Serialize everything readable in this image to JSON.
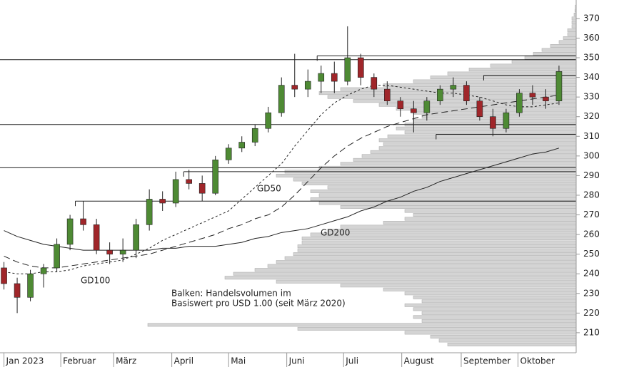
{
  "chart_data": {
    "type": "candlestick",
    "annotations": [
      "GD50",
      "GD100",
      "GD200",
      "Balken: Handelsvolumen im",
      "Basiswert pro USD 1.00 (seit März 2020)"
    ],
    "xlim": [
      -0.3,
      43.3
    ],
    "xticks": [
      {
        "value": 0,
        "label": "Jan 2023"
      },
      {
        "value": 4.3,
        "label": "Februar"
      },
      {
        "value": 8.3,
        "label": "März"
      },
      {
        "value": 12.7,
        "label": "April"
      },
      {
        "value": 17,
        "label": "Mai"
      },
      {
        "value": 21.4,
        "label": "Juni"
      },
      {
        "value": 25.7,
        "label": "Juli"
      },
      {
        "value": 30.1,
        "label": "August"
      },
      {
        "value": 34.6,
        "label": "September"
      },
      {
        "value": 38.9,
        "label": "Oktober"
      }
    ],
    "ylim": [
      199.8,
      379.4
    ],
    "yticks": [
      210,
      220,
      230,
      240,
      250,
      260,
      270,
      280,
      290,
      300,
      310,
      320,
      330,
      340,
      350,
      360,
      370
    ],
    "up_color": "#4e8a34",
    "down_color": "#a0262a",
    "open": [
      243,
      235,
      228,
      240,
      243,
      255,
      268,
      265,
      252,
      250,
      252,
      265,
      278,
      276,
      288,
      286,
      281,
      298,
      304,
      307,
      314,
      322,
      336,
      334,
      338,
      342,
      338,
      350,
      340,
      334,
      328,
      324,
      322,
      328,
      334,
      336,
      328,
      320,
      314,
      322,
      332,
      330,
      328
    ],
    "high": [
      246,
      238,
      242,
      245,
      258,
      270,
      277,
      268,
      256,
      258,
      268,
      283,
      282,
      292,
      293,
      290,
      300,
      306,
      310,
      316,
      325,
      340,
      352,
      344,
      346,
      348,
      366,
      352,
      342,
      338,
      330,
      328,
      330,
      336,
      340,
      338,
      330,
      324,
      324,
      334,
      336,
      334,
      346
    ],
    "low": [
      232,
      220,
      226,
      233,
      241,
      252,
      262,
      250,
      245,
      246,
      248,
      262,
      272,
      274,
      283,
      277,
      280,
      296,
      302,
      305,
      312,
      320,
      330,
      330,
      332,
      332,
      336,
      336,
      330,
      326,
      320,
      312,
      318,
      326,
      330,
      326,
      318,
      310,
      312,
      320,
      326,
      324,
      326
    ],
    "close": [
      235,
      228,
      240,
      243,
      255,
      268,
      265,
      252,
      250,
      252,
      265,
      278,
      276,
      288,
      286,
      281,
      298,
      304,
      307,
      314,
      322,
      336,
      334,
      338,
      342,
      338,
      350,
      340,
      334,
      328,
      324,
      322,
      328,
      334,
      336,
      328,
      320,
      314,
      322,
      332,
      330,
      328,
      343
    ],
    "moving_averages": [
      {
        "name": "GD50",
        "dash": "3,3",
        "values": [
          241,
          240,
          240,
          241,
          241,
          242,
          244,
          245,
          246,
          247,
          250,
          253,
          257,
          260,
          263,
          266,
          269,
          272,
          278,
          284,
          290,
          296,
          305,
          313,
          321,
          327,
          331,
          334,
          336,
          336,
          335,
          334,
          333,
          332,
          332,
          331,
          330,
          328,
          326,
          325,
          325,
          326,
          327
        ]
      },
      {
        "name": "GD100",
        "dash": "9,5",
        "values": [
          249,
          246,
          244,
          243,
          243,
          244,
          245,
          246,
          247,
          248,
          249,
          250,
          252,
          254,
          256,
          258,
          260,
          263,
          265,
          268,
          270,
          274,
          280,
          287,
          294,
          300,
          305,
          309,
          312,
          315,
          317,
          319,
          321,
          322,
          323,
          324,
          325,
          326,
          327,
          328,
          329,
          330,
          331
        ]
      },
      {
        "name": "GD200",
        "dash": "",
        "values": [
          262,
          259,
          257,
          255,
          254,
          253,
          252,
          252,
          252,
          252,
          252,
          252,
          253,
          253,
          254,
          254,
          254,
          255,
          256,
          258,
          259,
          261,
          262,
          263,
          265,
          267,
          269,
          272,
          274,
          277,
          279,
          282,
          284,
          287,
          289,
          291,
          293,
          295,
          297,
          299,
          301,
          302,
          304
        ]
      }
    ],
    "levels": [
      {
        "value": 349,
        "start": -0.3
      },
      {
        "value": 351,
        "start": 23.7
      },
      {
        "value": 341,
        "start": 36.3
      },
      {
        "value": 316,
        "start": -0.3
      },
      {
        "value": 311,
        "start": 32.7
      },
      {
        "value": 294,
        "start": -0.3
      },
      {
        "value": 292,
        "start": 13.6
      },
      {
        "value": 277,
        "start": 5.4
      }
    ],
    "volume_profile": {
      "color": "#d4d4d4",
      "xlim": [
        0,
        100
      ],
      "levels": [
        204,
        206,
        208,
        210,
        212,
        214,
        216,
        218,
        220,
        222,
        224,
        226,
        228,
        230,
        232,
        234,
        236,
        238,
        240,
        242,
        244,
        246,
        248,
        250,
        252,
        254,
        256,
        258,
        260,
        262,
        264,
        266,
        268,
        270,
        272,
        274,
        276,
        278,
        280,
        282,
        284,
        286,
        288,
        290,
        292,
        294,
        296,
        298,
        300,
        302,
        304,
        306,
        308,
        310,
        312,
        314,
        316,
        318,
        320,
        322,
        324,
        326,
        328,
        330,
        332,
        334,
        336,
        338,
        340,
        342,
        344,
        346,
        348,
        350,
        352,
        354,
        356,
        358,
        360,
        362,
        364,
        366,
        368,
        370,
        372,
        374,
        376
      ],
      "values": [
        30,
        32,
        34,
        40,
        65,
        100,
        36,
        38,
        36,
        38,
        40,
        36,
        38,
        40,
        45,
        55,
        70,
        82,
        80,
        75,
        72,
        70,
        68,
        66,
        65,
        65,
        64,
        64,
        62,
        58,
        55,
        45,
        40,
        38,
        40,
        55,
        60,
        62,
        60,
        62,
        58,
        64,
        66,
        70,
        68,
        60,
        55,
        52,
        50,
        48,
        46,
        45,
        46,
        44,
        40,
        42,
        40,
        38,
        36,
        38,
        42,
        46,
        52,
        58,
        60,
        55,
        45,
        38,
        34,
        30,
        25,
        20,
        15,
        12,
        10,
        8,
        6,
        4,
        3,
        2,
        2,
        1,
        1,
        1,
        0.5,
        0.3,
        0.2
      ]
    }
  }
}
